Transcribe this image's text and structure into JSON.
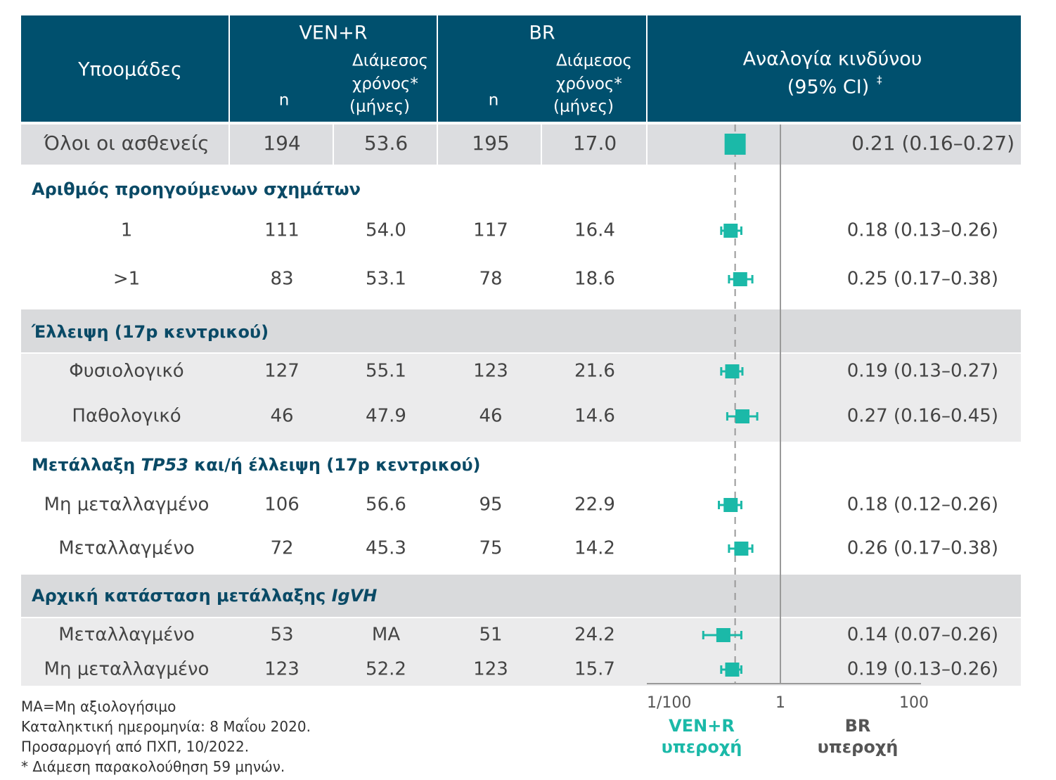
{
  "chart_data": {
    "type": "forest",
    "header": {
      "subgroups": "Υποομάδες",
      "arms": [
        "VEN+R",
        "BR"
      ],
      "n": "n",
      "median": [
        "Διάμεσος",
        "χρόνος*",
        "(μήνες)"
      ],
      "hr": [
        "Αναλογία κινδύνου",
        "(95% CI)"
      ],
      "hr_mark": "‡"
    },
    "rows": [
      {
        "label": "Όλοι οι ασθενείς",
        "ven_n": "194",
        "ven_median": "53.6",
        "br_n": "195",
        "br_median": "17.0",
        "hr": 0.21,
        "ci": [
          0.16,
          0.27
        ],
        "hr_label": "0.21 (0.16–0.27)"
      },
      {
        "section": [
          {
            "text": "Αριθμός προηγούμενων σχημάτων",
            "italic": false
          }
        ]
      },
      {
        "label": "1",
        "ven_n": "111",
        "ven_median": "54.0",
        "br_n": "117",
        "br_median": "16.4",
        "hr": 0.18,
        "ci": [
          0.13,
          0.26
        ],
        "hr_label": "0.18 (0.13–0.26)"
      },
      {
        "label": ">1",
        "ven_n": "83",
        "ven_median": "53.1",
        "br_n": "78",
        "br_median": "18.6",
        "hr": 0.25,
        "ci": [
          0.17,
          0.38
        ],
        "hr_label": "0.25 (0.17–0.38)"
      },
      {
        "section": [
          {
            "text": "Έλλειψη (17p κεντρικού)",
            "italic": false
          }
        ]
      },
      {
        "label": "Φυσιολογικό",
        "ven_n": "127",
        "ven_median": "55.1",
        "br_n": "123",
        "br_median": "21.6",
        "hr": 0.19,
        "ci": [
          0.13,
          0.27
        ],
        "hr_label": "0.19 (0.13–0.27)"
      },
      {
        "label": "Παθολογικό",
        "ven_n": "46",
        "ven_median": "47.9",
        "br_n": "46",
        "br_median": "14.6",
        "hr": 0.27,
        "ci": [
          0.16,
          0.45
        ],
        "hr_label": "0.27 (0.16–0.45)"
      },
      {
        "section": [
          {
            "text": "Μετάλλαξη ",
            "italic": false
          },
          {
            "text": "TP53",
            "italic": true
          },
          {
            "text": " και/ή έλλειψη (17p κεντρικού)",
            "italic": false
          }
        ]
      },
      {
        "label": "Μη μεταλλαγμένο",
        "ven_n": "106",
        "ven_median": "56.6",
        "br_n": "95",
        "br_median": "22.9",
        "hr": 0.18,
        "ci": [
          0.12,
          0.26
        ],
        "hr_label": "0.18 (0.12–0.26)"
      },
      {
        "label": "Μεταλλαγμένο",
        "ven_n": "72",
        "ven_median": "45.3",
        "br_n": "75",
        "br_median": "14.2",
        "hr": 0.26,
        "ci": [
          0.17,
          0.38
        ],
        "hr_label": "0.26 (0.17–0.38)"
      },
      {
        "section": [
          {
            "text": "Αρχική κατάσταση μετάλλαξης ",
            "italic": false
          },
          {
            "text": "IgVH",
            "italic": true
          }
        ]
      },
      {
        "label": "Μεταλλαγμένο",
        "ven_n": "53",
        "ven_median": "ΜΑ",
        "br_n": "51",
        "br_median": "24.2",
        "hr": 0.14,
        "ci": [
          0.07,
          0.26
        ],
        "hr_label": "0.14 (0.07–0.26)"
      },
      {
        "label": "Μη μεταλλαγμένο",
        "ven_n": "123",
        "ven_median": "52.2",
        "br_n": "123",
        "br_median": "15.7",
        "hr": 0.19,
        "ci": [
          0.13,
          0.26
        ],
        "hr_label": "0.19 (0.13–0.26)"
      }
    ],
    "log_x": true,
    "xlim": [
      0.01,
      100
    ],
    "xticks": [
      {
        "value": 0.01,
        "label": "1/100"
      },
      1,
      100
    ],
    "favours": [
      [
        "VEN+R",
        "υπεροχή"
      ],
      [
        "BR",
        "υπεροχή"
      ]
    ],
    "color": "#1bb9a8",
    "footnotes": [
      "ΜΑ=Μη αξιολογήσιμο",
      "Καταληκτική ημερομηνία: 8 Μαΐου 2020.",
      "Προσαρμογή από ΠΧΠ, 10/2022.",
      "* Διάμεση παρακολούθηση 59 μηνών."
    ]
  }
}
